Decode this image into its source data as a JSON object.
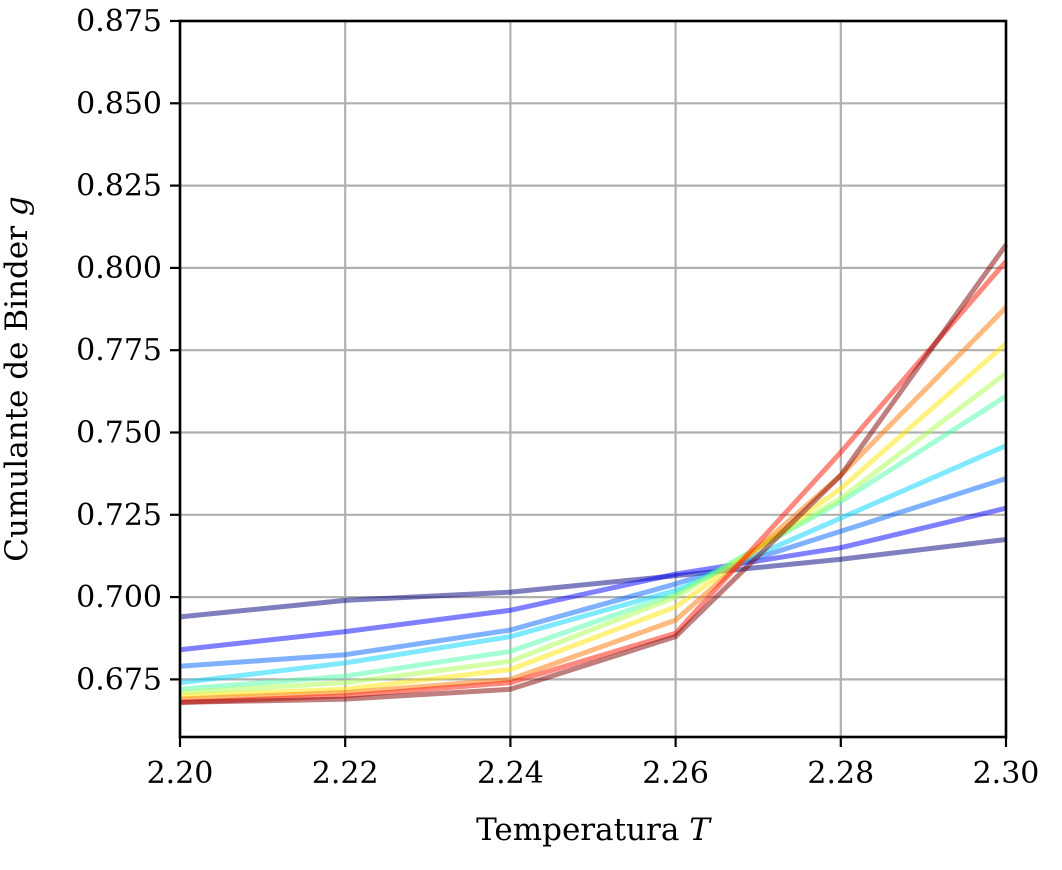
{
  "chart_data": {
    "type": "line",
    "xlabel": "Temperatura",
    "xlabel_var": "T",
    "ylabel": "Cumulante de Binder",
    "ylabel_var": "g",
    "xlim": [
      2.2,
      2.3
    ],
    "ylim": [
      0.6575,
      0.875
    ],
    "x": [
      2.2,
      2.22,
      2.24,
      2.26,
      2.28,
      2.3
    ],
    "xticks": [
      "2.20",
      "2.22",
      "2.24",
      "2.26",
      "2.28",
      "2.30"
    ],
    "yticks": [
      "0.675",
      "0.700",
      "0.725",
      "0.750",
      "0.775",
      "0.800",
      "0.825",
      "0.850",
      "0.875"
    ],
    "ytick_values": [
      0.675,
      0.7,
      0.725,
      0.75,
      0.775,
      0.8,
      0.825,
      0.85,
      0.875
    ],
    "grid": true,
    "legend": "none",
    "series": [
      {
        "color": "#00007f",
        "values": [
          0.694,
          0.699,
          0.7015,
          0.7065,
          0.7115,
          0.7175
        ]
      },
      {
        "color": "#0000ff",
        "values": [
          0.684,
          0.6895,
          0.696,
          0.707,
          0.715,
          0.727
        ]
      },
      {
        "color": "#0063ff",
        "values": [
          0.679,
          0.6825,
          0.69,
          0.704,
          0.72,
          0.736
        ]
      },
      {
        "color": "#00d4ff",
        "values": [
          0.674,
          0.68,
          0.688,
          0.702,
          0.724,
          0.746
        ]
      },
      {
        "color": "#4effa9",
        "values": [
          0.672,
          0.676,
          0.6835,
          0.701,
          0.729,
          0.761
        ]
      },
      {
        "color": "#a9ff4e",
        "values": [
          0.671,
          0.674,
          0.6805,
          0.7,
          0.73,
          0.768
        ]
      },
      {
        "color": "#ffe500",
        "values": [
          0.67,
          0.672,
          0.678,
          0.697,
          0.733,
          0.777
        ]
      },
      {
        "color": "#ff7700",
        "values": [
          0.669,
          0.671,
          0.675,
          0.693,
          0.737,
          0.788
        ]
      },
      {
        "color": "#ff1300",
        "values": [
          0.668,
          0.67,
          0.674,
          0.689,
          0.744,
          0.802
        ]
      },
      {
        "color": "#7f0000",
        "values": [
          0.668,
          0.669,
          0.672,
          0.688,
          0.737,
          0.807
        ]
      }
    ]
  }
}
